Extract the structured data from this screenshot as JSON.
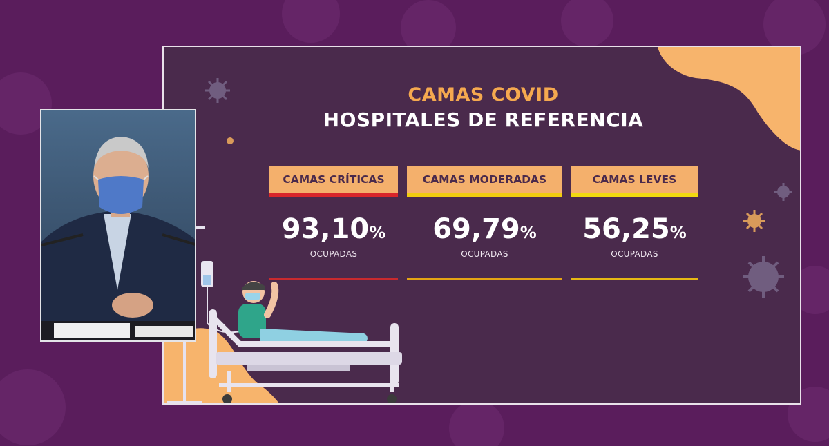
{
  "slide": {
    "title_line1": "CAMAS COVID",
    "title_line2": "HOSPITALES DE REFERENCIA",
    "stats": [
      {
        "label": "CAMAS CRÍTICAS",
        "value": "93,10",
        "unit": "%",
        "sub": "OCUPADAS",
        "accent_color": "#d8262b"
      },
      {
        "label": "CAMAS MODERADAS",
        "value": "69,79",
        "unit": "%",
        "sub": "OCUPADAS",
        "accent_color": "#f1cc10"
      },
      {
        "label": "CAMAS LEVES",
        "value": "56,25",
        "unit": "%",
        "sub": "OCUPADAS",
        "accent_color": "#f1d910"
      }
    ]
  },
  "colors": {
    "background": "#5a1d5c",
    "panel": "#4a2a4c",
    "title_accent": "#f5a94f",
    "label_bg": "#f4b06c"
  },
  "video_feed": {
    "subject": "speaker-with-face-mask"
  }
}
